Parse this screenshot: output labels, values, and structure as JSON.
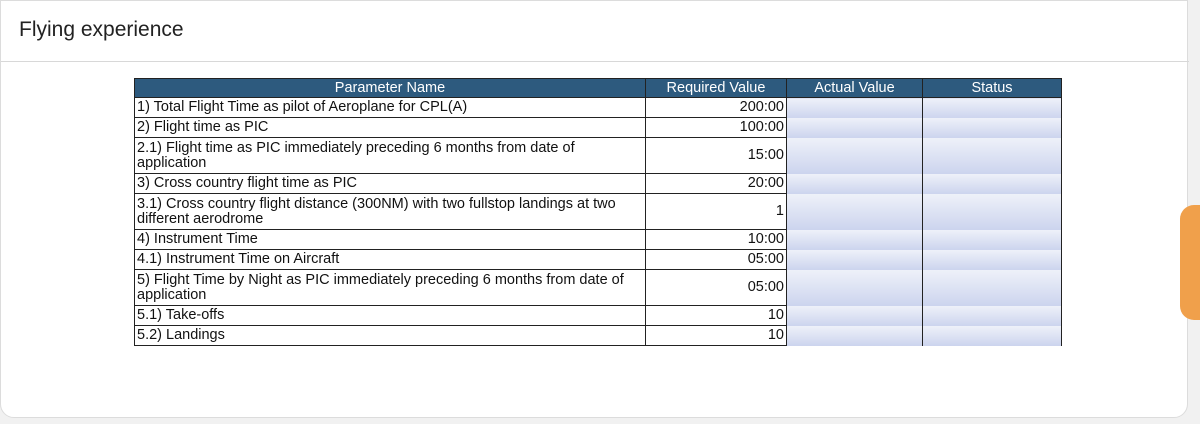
{
  "header": {
    "title": "Flying experience"
  },
  "table": {
    "columns": [
      "Parameter Name",
      "Required Value",
      "Actual Value",
      "Status"
    ],
    "rows": [
      [
        "1) Total Flight Time as pilot of Aeroplane for CPL(A)",
        "200:00"
      ],
      [
        "2) Flight time as PIC",
        "100:00"
      ],
      [
        "2.1) Flight time as PIC immediately preceding 6 months from date of application",
        "15:00"
      ],
      [
        "3) Cross country flight time as PIC",
        "20:00"
      ],
      [
        "3.1) Cross country flight distance (300NM) with two fullstop landings at two different aerodrome",
        "1"
      ],
      [
        "4) Instrument Time",
        "10:00"
      ],
      [
        "4.1) Instrument Time on Aircraft",
        "05:00"
      ],
      [
        "5) Flight Time by Night as PIC immediately preceding 6 months from date of application",
        "05:00"
      ],
      [
        "5.1) Take-offs",
        "10"
      ],
      [
        "5.2) Landings",
        "10"
      ]
    ]
  }
}
